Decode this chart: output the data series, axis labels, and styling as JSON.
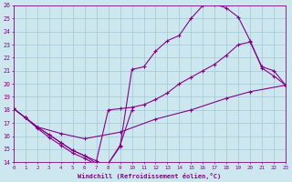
{
  "xlabel": "Windchill (Refroidissement éolien,°C)",
  "xlim": [
    0,
    23
  ],
  "ylim": [
    14,
    26
  ],
  "xticks": [
    0,
    1,
    2,
    3,
    4,
    5,
    6,
    7,
    8,
    9,
    10,
    11,
    12,
    13,
    14,
    15,
    16,
    17,
    18,
    19,
    20,
    21,
    22,
    23
  ],
  "yticks": [
    14,
    15,
    16,
    17,
    18,
    19,
    20,
    21,
    22,
    23,
    24,
    25,
    26
  ],
  "bg_color": "#cce8ee",
  "line_color": "#880088",
  "grid_color": "#a0c8d8",
  "curves": [
    {
      "x": [
        0,
        1,
        2,
        3,
        4,
        5,
        6,
        7,
        8,
        9,
        10,
        11,
        12,
        13,
        14,
        15,
        16,
        17,
        18,
        19,
        20,
        21,
        22,
        23
      ],
      "y": [
        18.1,
        17.4,
        16.7,
        16.1,
        15.5,
        14.9,
        14.5,
        13.9,
        13.9,
        15.2,
        21.1,
        21.3,
        22.5,
        23.3,
        23.7,
        25.0,
        26.0,
        26.1,
        25.8,
        25.1,
        23.3,
        21.2,
        20.6,
        19.9
      ]
    },
    {
      "x": [
        0,
        1,
        2,
        3,
        4,
        5,
        6,
        7,
        8,
        9,
        10,
        11,
        12,
        13,
        14,
        15,
        16,
        17,
        18,
        19,
        20,
        21,
        22,
        23
      ],
      "y": [
        18.1,
        17.4,
        16.7,
        16.1,
        15.5,
        14.9,
        14.5,
        14.1,
        18.0,
        18.1,
        18.2,
        18.4,
        18.8,
        19.3,
        20.0,
        20.5,
        21.0,
        21.5,
        22.2,
        23.0,
        23.2,
        21.3,
        21.0,
        19.9
      ]
    },
    {
      "x": [
        0,
        1,
        2,
        4,
        6,
        9,
        12,
        15,
        18,
        20,
        23
      ],
      "y": [
        18.1,
        17.4,
        16.7,
        16.2,
        15.8,
        16.3,
        17.3,
        18.0,
        18.9,
        19.4,
        19.9
      ]
    },
    {
      "x": [
        1,
        2,
        3,
        4,
        5,
        6,
        7,
        8,
        9,
        10
      ],
      "y": [
        17.4,
        16.6,
        15.9,
        15.3,
        14.7,
        14.3,
        13.8,
        13.9,
        15.3,
        18.0
      ]
    }
  ]
}
